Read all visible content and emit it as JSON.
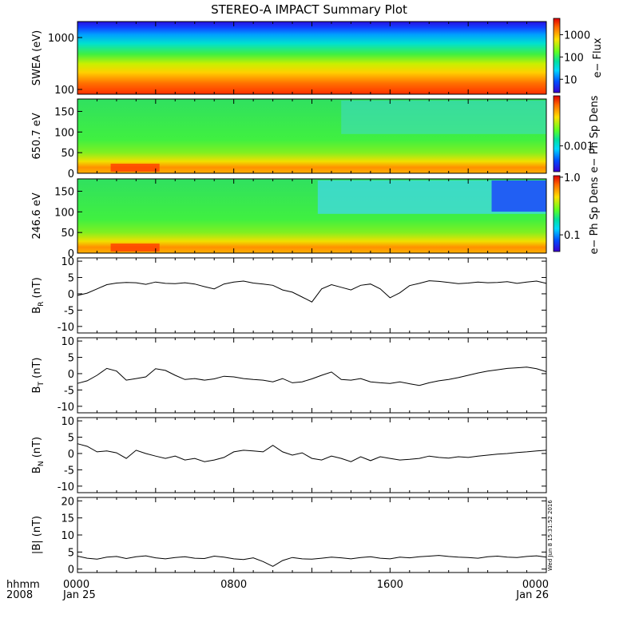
{
  "title": "STEREO-A IMPACT Summary Plot",
  "footer": {
    "row1_label": "hhmm",
    "row2_label": "2008",
    "x_ticks": [
      "0000",
      "0800",
      "1600",
      "0000"
    ],
    "x_dates": [
      "Jan 25",
      "",
      "",
      "Jan 26"
    ]
  },
  "timestamp": "Wed Jun  8 15:31:52 2016",
  "colors": {
    "spectrogram_low": "#2a00d8",
    "spectrogram_mid": "#18e018",
    "spectrogram_high": "#e01000",
    "trace": "#000000"
  },
  "chart_data": [
    {
      "type": "heatmap",
      "ylabel": "SWEA (eV)",
      "yscale": "log",
      "yticks": [
        "1000",
        "100"
      ],
      "colorbar_label": "e− Flux",
      "colorbar_ticks": [
        "1000",
        "100",
        "10"
      ],
      "colorbar_scale": "log"
    },
    {
      "type": "heatmap",
      "ylabel": "650.7 eV",
      "ylim": [
        0,
        180
      ],
      "yticks": [
        "150",
        "100",
        "50",
        "0"
      ],
      "colorbar_label": "e− Ph Sp Dens",
      "colorbar_ticks": [
        "0.001"
      ],
      "colorbar_scale": "log"
    },
    {
      "type": "heatmap",
      "ylabel": "246.6 eV",
      "ylim": [
        0,
        180
      ],
      "yticks": [
        "150",
        "100",
        "50",
        "0"
      ],
      "colorbar_label": "e− Ph Sp Dens",
      "colorbar_ticks": [
        "1.0",
        "0.1"
      ],
      "colorbar_scale": "log"
    },
    {
      "type": "line",
      "ylabel": "B_R (nT)",
      "ylim": [
        -12,
        11
      ],
      "yticks": [
        "10",
        "5",
        "0",
        "-5",
        "-10"
      ],
      "x_hours": [
        0,
        0.5,
        1,
        1.5,
        2,
        2.5,
        3,
        3.5,
        4,
        4.5,
        5,
        5.5,
        6,
        6.5,
        7,
        7.5,
        8,
        8.5,
        9,
        9.5,
        10,
        10.5,
        11,
        11.5,
        12,
        12.5,
        13,
        13.5,
        14,
        14.5,
        15,
        15.5,
        16,
        16.5,
        17,
        17.5,
        18,
        18.5,
        19,
        19.5,
        20,
        20.5,
        21,
        21.5,
        22,
        22.5,
        23,
        23.5,
        24
      ],
      "y": [
        -0.5,
        0.2,
        1.5,
        2.8,
        3.3,
        3.5,
        3.4,
        2.9,
        3.6,
        3.2,
        3.1,
        3.4,
        3.0,
        2.2,
        1.5,
        3.0,
        3.6,
        3.9,
        3.3,
        3.0,
        2.6,
        1.2,
        0.5,
        -1.0,
        -2.5,
        1.5,
        2.8,
        2.0,
        1.2,
        2.6,
        3.0,
        1.5,
        -1.2,
        0.3,
        2.5,
        3.2,
        4.0,
        3.8,
        3.5,
        3.1,
        3.3,
        3.6,
        3.4,
        3.5,
        3.7,
        3.2,
        3.6,
        3.9,
        3.2
      ]
    },
    {
      "type": "line",
      "ylabel": "B_T (nT)",
      "ylim": [
        -12,
        11
      ],
      "yticks": [
        "10",
        "5",
        "0",
        "-5",
        "-10"
      ],
      "x_hours": [
        0,
        0.5,
        1,
        1.5,
        2,
        2.5,
        3,
        3.5,
        4,
        4.5,
        5,
        5.5,
        6,
        6.5,
        7,
        7.5,
        8,
        8.5,
        9,
        9.5,
        10,
        10.5,
        11,
        11.5,
        12,
        12.5,
        13,
        13.5,
        14,
        14.5,
        15,
        15.5,
        16,
        16.5,
        17,
        17.5,
        18,
        18.5,
        19,
        19.5,
        20,
        20.5,
        21,
        21.5,
        22,
        22.5,
        23,
        23.5,
        24
      ],
      "y": [
        -3.0,
        -2.2,
        -0.5,
        1.6,
        0.8,
        -2.0,
        -1.5,
        -1.0,
        1.5,
        1.0,
        -0.5,
        -1.8,
        -1.5,
        -2.0,
        -1.6,
        -0.8,
        -1.0,
        -1.5,
        -1.8,
        -2.0,
        -2.5,
        -1.5,
        -2.8,
        -2.5,
        -1.6,
        -0.5,
        0.5,
        -1.8,
        -2.0,
        -1.5,
        -2.5,
        -2.8,
        -3.0,
        -2.5,
        -3.1,
        -3.6,
        -2.8,
        -2.2,
        -1.8,
        -1.2,
        -0.5,
        0.2,
        0.8,
        1.2,
        1.6,
        1.8,
        2.0,
        1.5,
        0.6
      ]
    },
    {
      "type": "line",
      "ylabel": "B_N (nT)",
      "ylim": [
        -12,
        11
      ],
      "yticks": [
        "10",
        "5",
        "0",
        "-5",
        "-10"
      ],
      "x_hours": [
        0,
        0.5,
        1,
        1.5,
        2,
        2.5,
        3,
        3.5,
        4,
        4.5,
        5,
        5.5,
        6,
        6.5,
        7,
        7.5,
        8,
        8.5,
        9,
        9.5,
        10,
        10.5,
        11,
        11.5,
        12,
        12.5,
        13,
        13.5,
        14,
        14.5,
        15,
        15.5,
        16,
        16.5,
        17,
        17.5,
        18,
        18.5,
        19,
        19.5,
        20,
        20.5,
        21,
        21.5,
        22,
        22.5,
        23,
        23.5,
        24
      ],
      "y": [
        3.0,
        2.2,
        0.5,
        0.8,
        0.2,
        -1.5,
        1.0,
        0.0,
        -0.8,
        -1.5,
        -0.8,
        -2.0,
        -1.5,
        -2.5,
        -2.0,
        -1.2,
        0.5,
        1.0,
        0.8,
        0.5,
        2.5,
        0.5,
        -0.5,
        0.2,
        -1.5,
        -2.0,
        -0.8,
        -1.5,
        -2.5,
        -1.0,
        -2.2,
        -1.0,
        -1.5,
        -2.0,
        -1.8,
        -1.5,
        -0.8,
        -1.2,
        -1.4,
        -1.0,
        -1.2,
        -0.8,
        -0.5,
        -0.2,
        0.0,
        0.3,
        0.5,
        0.8,
        1.0
      ]
    },
    {
      "type": "line",
      "ylabel": "|B| (nT)",
      "ylim": [
        -1,
        21
      ],
      "yticks": [
        "20",
        "15",
        "10",
        "5",
        "0"
      ],
      "x_hours": [
        0,
        0.5,
        1,
        1.5,
        2,
        2.5,
        3,
        3.5,
        4,
        4.5,
        5,
        5.5,
        6,
        6.5,
        7,
        7.5,
        8,
        8.5,
        9,
        9.5,
        10,
        10.5,
        11,
        11.5,
        12,
        12.5,
        13,
        13.5,
        14,
        14.5,
        15,
        15.5,
        16,
        16.5,
        17,
        17.5,
        18,
        18.5,
        19,
        19.5,
        20,
        20.5,
        21,
        21.5,
        22,
        22.5,
        23,
        23.5,
        24
      ],
      "y": [
        3.8,
        3.2,
        2.9,
        3.5,
        3.7,
        3.1,
        3.6,
        3.9,
        3.3,
        3.0,
        3.4,
        3.6,
        3.2,
        3.1,
        3.8,
        3.5,
        3.0,
        2.8,
        3.3,
        2.2,
        0.8,
        2.5,
        3.4,
        3.0,
        2.9,
        3.2,
        3.5,
        3.3,
        3.0,
        3.4,
        3.6,
        3.2,
        3.0,
        3.5,
        3.3,
        3.6,
        3.8,
        4.0,
        3.7,
        3.5,
        3.4,
        3.2,
        3.6,
        3.8,
        3.5,
        3.4,
        3.7,
        3.9,
        3.5
      ]
    }
  ]
}
